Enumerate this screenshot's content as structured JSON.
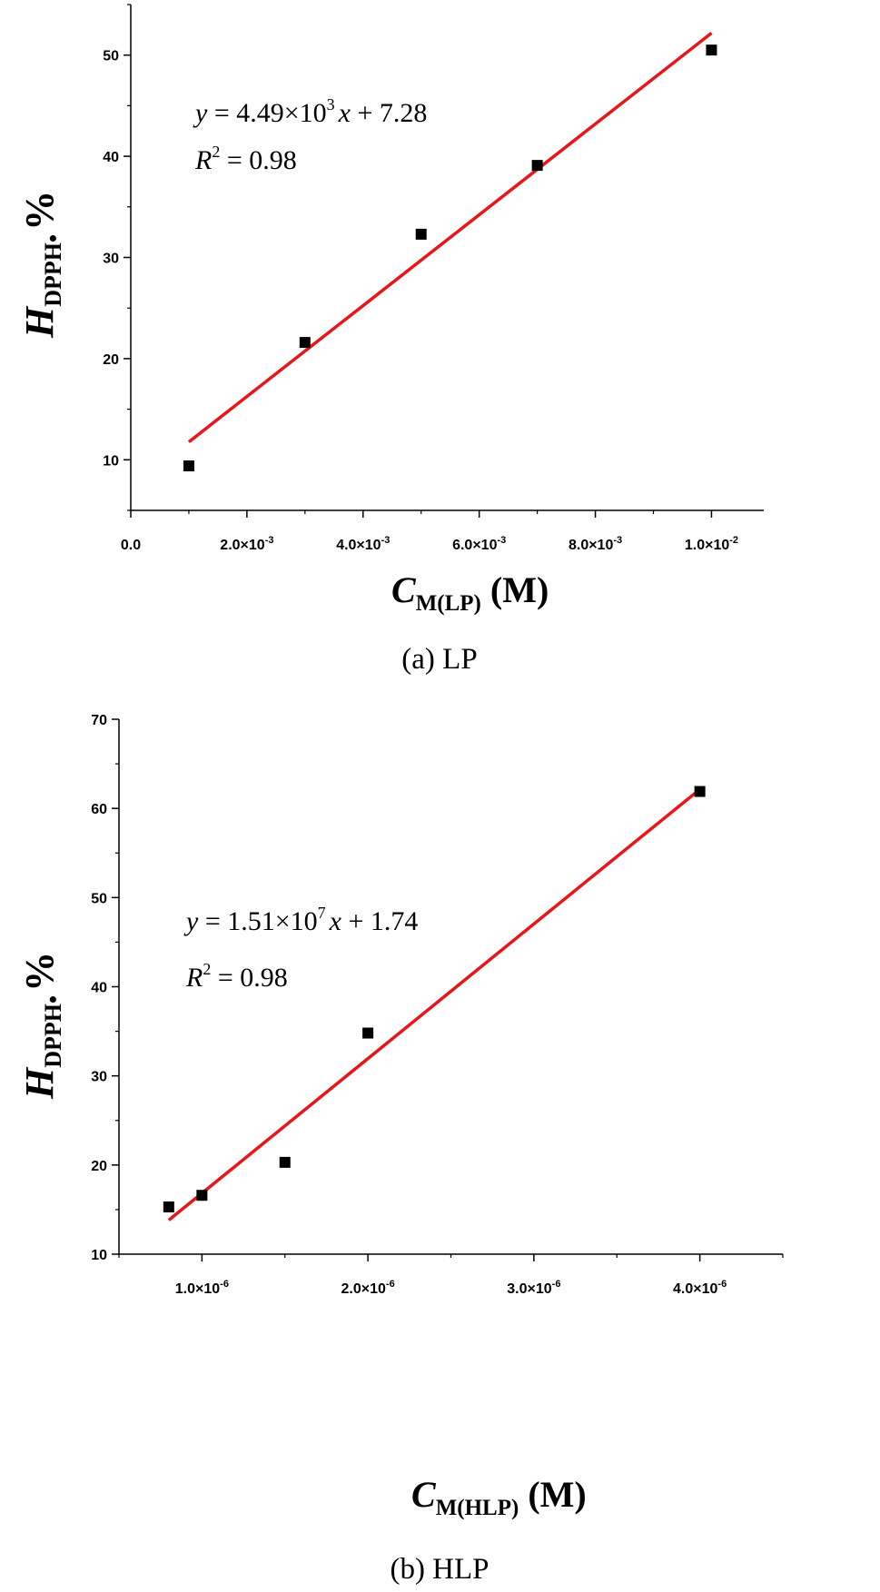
{
  "chart_data": [
    {
      "type": "scatter",
      "panel_caption": "(a) LP",
      "xlabel": {
        "main": "C",
        "sub": "M(LP)",
        "unit": "(M)"
      },
      "ylabel": {
        "main": "H",
        "sub": "DPPH•",
        "unit": "%"
      },
      "xlim": [
        0,
        0.0109
      ],
      "ylim": [
        5,
        55
      ],
      "x_ticks": [
        {
          "value": 0,
          "label": "0.0"
        },
        {
          "value": 0.002,
          "label": "2.0×10",
          "exp": "-3"
        },
        {
          "value": 0.004,
          "label": "4.0×10",
          "exp": "-3"
        },
        {
          "value": 0.006,
          "label": "6.0×10",
          "exp": "-3"
        },
        {
          "value": 0.008,
          "label": "8.0×10",
          "exp": "-3"
        },
        {
          "value": 0.01,
          "label": "1.0×10",
          "exp": "-2"
        }
      ],
      "y_ticks": [
        10,
        20,
        30,
        40,
        50
      ],
      "x_minor": 0.001,
      "y_minor": 5,
      "points": {
        "x": [
          0.001,
          0.003,
          0.005,
          0.007,
          0.01
        ],
        "y": [
          9.4,
          21.6,
          32.3,
          39.1,
          50.5
        ]
      },
      "fit": {
        "slope": 4490,
        "intercept": 7.28,
        "x_range": [
          0.001,
          0.01
        ]
      },
      "equation": {
        "y": "y",
        "eq1": " = 4.49×10",
        "exp": "3",
        "x": "x",
        "eq2": " + 7.28",
        "r": "R",
        "rexp": "2",
        "r_val": " = 0.98"
      },
      "grid": false
    },
    {
      "type": "scatter",
      "panel_caption": "(b) HLP",
      "xlabel": {
        "main": "C",
        "sub": "M(HLP)",
        "unit": "(M)"
      },
      "ylabel": {
        "main": "H",
        "sub": "DPPH•",
        "unit": "%"
      },
      "xlim": [
        5e-07,
        4.5e-06
      ],
      "ylim": [
        10,
        70
      ],
      "x_ticks": [
        {
          "value": 1e-06,
          "label": "1.0×10",
          "exp": "-6"
        },
        {
          "value": 2e-06,
          "label": "2.0×10",
          "exp": "-6"
        },
        {
          "value": 3e-06,
          "label": "3.0×10",
          "exp": "-6"
        },
        {
          "value": 4e-06,
          "label": "4.0×10",
          "exp": "-6"
        }
      ],
      "y_ticks": [
        10,
        20,
        30,
        40,
        50,
        60,
        70
      ],
      "x_minor": 5e-07,
      "y_minor": 5,
      "points": {
        "x": [
          8e-07,
          1e-06,
          1.5e-06,
          2e-06,
          4e-06
        ],
        "y": [
          15.3,
          16.6,
          20.3,
          34.8,
          61.9
        ]
      },
      "fit": {
        "slope": 15100000,
        "intercept": 1.74,
        "x_range": [
          8e-07,
          4e-06
        ]
      },
      "equation": {
        "y": "y",
        "eq1": " = 1.51×10",
        "exp": "7",
        "x": "x",
        "eq2": " + 1.74",
        "r": "R",
        "rexp": "2",
        "r_val": " = 0.98"
      },
      "grid": false
    }
  ],
  "colors": {
    "fit_line": "#e8161b",
    "marker": "#000000",
    "axis": "#000000"
  }
}
